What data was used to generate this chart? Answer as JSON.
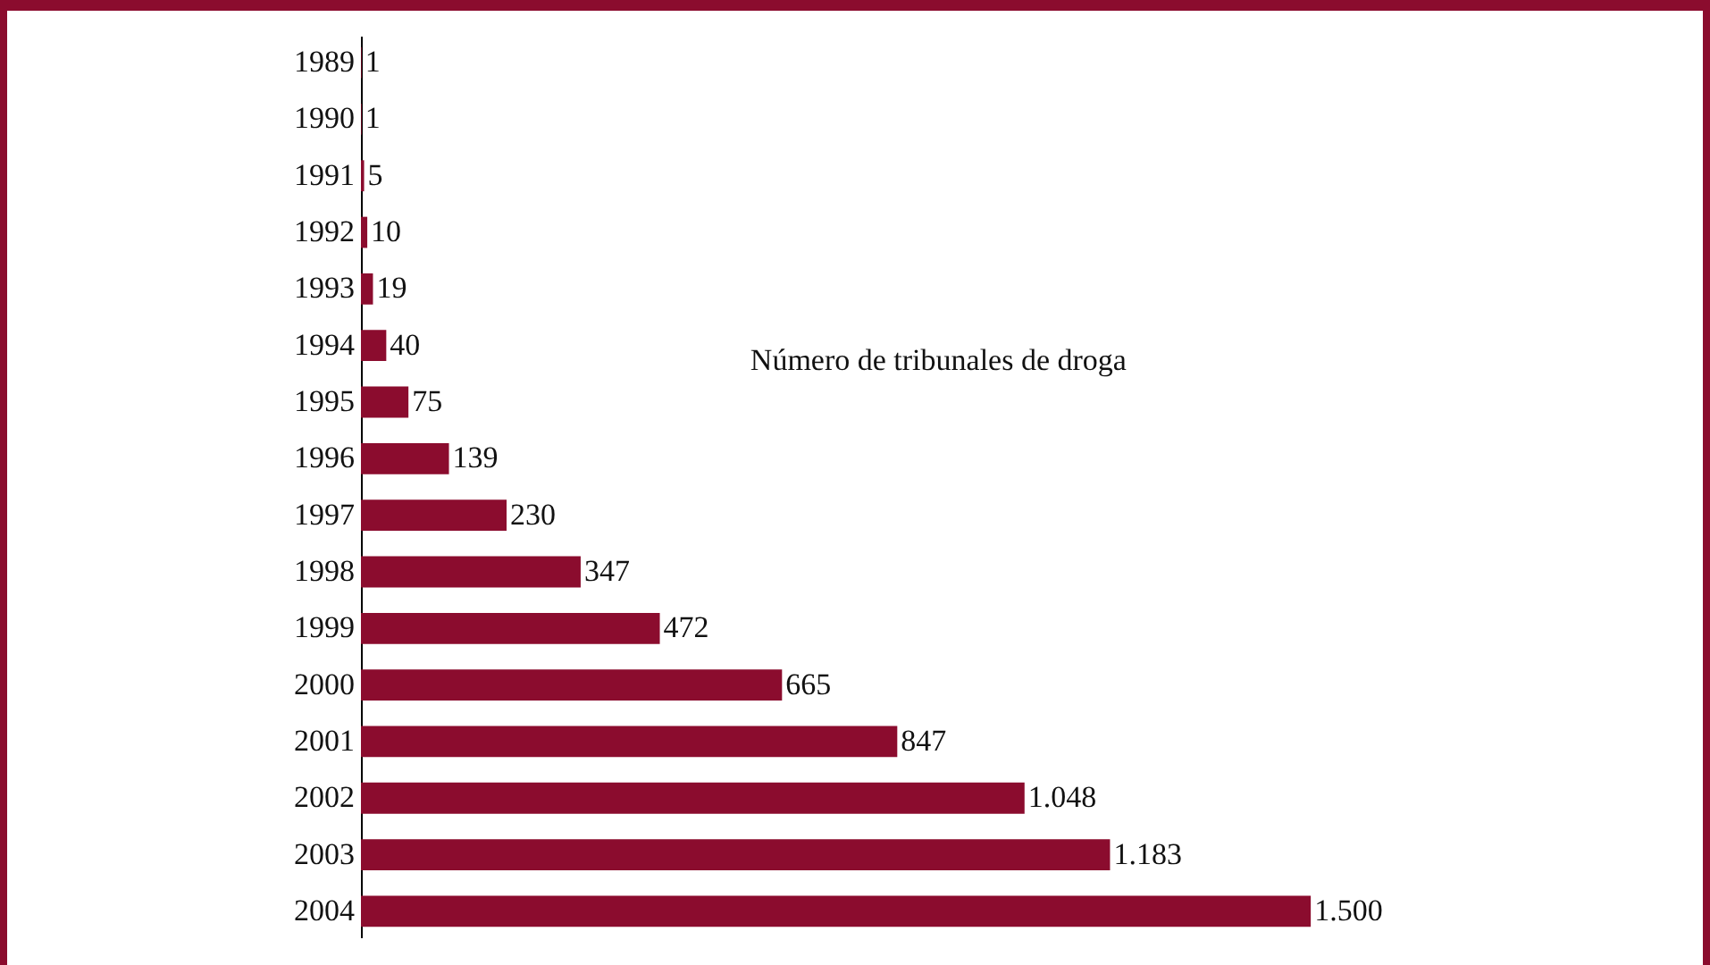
{
  "chart_data": {
    "type": "bar",
    "orientation": "horizontal",
    "title": "Número de tribunales de droga",
    "categories": [
      "1989",
      "1990",
      "1991",
      "1992",
      "1993",
      "1994",
      "1995",
      "1996",
      "1997",
      "1998",
      "1999",
      "2000",
      "2001",
      "2002",
      "2003",
      "2004"
    ],
    "values": [
      1,
      1,
      5,
      10,
      19,
      40,
      75,
      139,
      230,
      347,
      472,
      665,
      847,
      1048,
      1183,
      1500
    ],
    "value_labels": [
      "1",
      "1",
      "5",
      "10",
      "19",
      "40",
      "75",
      "139",
      "230",
      "347",
      "472",
      "665",
      "847",
      "1.048",
      "1.183",
      "1.500"
    ],
    "color": "#8b0c2e"
  }
}
